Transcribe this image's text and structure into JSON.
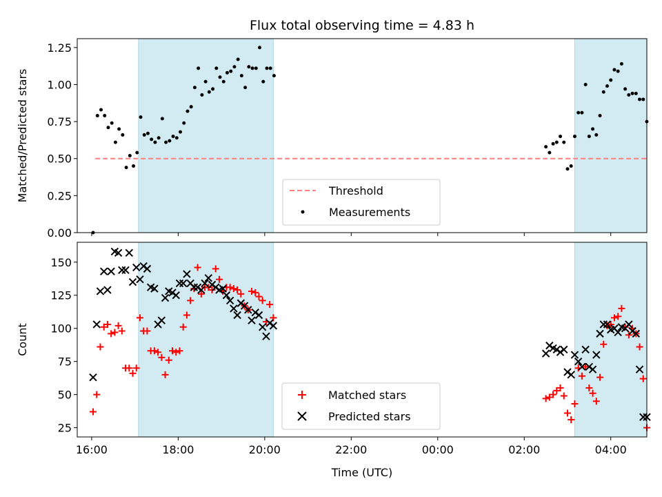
{
  "chart_data": {
    "title": "Flux total observing time = 4.83 h",
    "xlabel": "Time (UTC)",
    "x_tick_labels": [
      "16:00",
      "18:00",
      "20:00",
      "22:00",
      "00:00",
      "02:00",
      "04:00"
    ],
    "x_tick_times": [
      "16:00",
      "18:00",
      "20:00",
      "22:00",
      "00:00",
      "02:00",
      "04:00"
    ],
    "x_range": [
      "15:40",
      "04:50"
    ],
    "shaded_intervals": [
      [
        "17:05",
        "20:12"
      ],
      [
        "03:10",
        "04:50"
      ]
    ],
    "shade_color": "#add8e6",
    "panels": [
      {
        "type": "scatter",
        "ylabel": "Matched/Predicted stars",
        "ylim": [
          0,
          1.31
        ],
        "yticks": [
          0.0,
          0.25,
          0.5,
          0.75,
          1.0,
          1.25
        ],
        "ytick_labels": [
          "0.00",
          "0.25",
          "0.50",
          "0.75",
          "1.00",
          "1.25"
        ],
        "legend_position": "lower center",
        "threshold": {
          "name": "Threshold",
          "value": 0.5,
          "x_start": "16:05",
          "x_end": "04:50",
          "color": "#ff7f7f"
        },
        "series": [
          {
            "name": "Measurements",
            "color": "#000000",
            "marker": "dot",
            "x": [
              "16:02",
              "16:08",
              "16:13",
              "16:18",
              "16:23",
              "16:28",
              "16:33",
              "16:38",
              "16:43",
              "16:48",
              "16:53",
              "16:58",
              "17:03",
              "17:08",
              "17:13",
              "17:18",
              "17:23",
              "17:28",
              "17:33",
              "17:38",
              "17:43",
              "17:48",
              "17:53",
              "17:58",
              "18:03",
              "18:08",
              "18:13",
              "18:18",
              "18:23",
              "18:28",
              "18:33",
              "18:38",
              "18:43",
              "18:48",
              "18:53",
              "18:58",
              "19:03",
              "19:08",
              "19:13",
              "19:18",
              "19:23",
              "19:28",
              "19:33",
              "19:38",
              "19:43",
              "19:48",
              "19:53",
              "19:58",
              "20:03",
              "20:08",
              "20:13",
              "02:30",
              "02:35",
              "02:40",
              "02:45",
              "02:50",
              "02:55",
              "03:00",
              "03:05",
              "03:10",
              "03:15",
              "03:20",
              "03:25",
              "03:30",
              "03:35",
              "03:40",
              "03:45",
              "03:50",
              "03:55",
              "04:00",
              "04:05",
              "04:10",
              "04:15",
              "04:20",
              "04:25",
              "04:30",
              "04:35",
              "04:40",
              "04:45",
              "04:50"
            ],
            "y": [
              0.0,
              0.79,
              0.83,
              0.79,
              0.71,
              0.74,
              0.61,
              0.7,
              0.66,
              0.44,
              0.52,
              0.45,
              0.54,
              0.78,
              0.66,
              0.67,
              0.63,
              0.61,
              0.64,
              0.77,
              0.61,
              0.62,
              0.65,
              0.64,
              0.68,
              0.74,
              0.82,
              0.85,
              0.98,
              1.11,
              0.93,
              1.02,
              0.95,
              0.97,
              1.11,
              1.05,
              1.02,
              1.08,
              1.09,
              1.12,
              1.17,
              1.06,
              0.98,
              1.12,
              1.11,
              1.11,
              1.25,
              1.02,
              1.11,
              1.11,
              1.06,
              0.58,
              0.54,
              0.6,
              0.61,
              0.65,
              0.61,
              0.43,
              0.45,
              0.65,
              0.81,
              0.81,
              1.0,
              0.65,
              0.7,
              0.66,
              0.79,
              0.95,
              0.99,
              1.03,
              1.1,
              1.09,
              1.14,
              0.97,
              0.93,
              0.94,
              0.94,
              0.9,
              0.9,
              0.75
            ]
          }
        ]
      },
      {
        "type": "scatter",
        "ylabel": "Count",
        "ylim": [
          18,
          165
        ],
        "yticks": [
          25,
          50,
          75,
          100,
          125,
          150
        ],
        "ytick_labels": [
          "25",
          "50",
          "75",
          "100",
          "125",
          "150"
        ],
        "legend_position": "lower center",
        "series": [
          {
            "name": "Matched stars",
            "color": "#ff0000",
            "marker": "plus",
            "x": [
              "16:02",
              "16:07",
              "16:12",
              "16:17",
              "16:22",
              "16:27",
              "16:32",
              "16:37",
              "16:42",
              "16:47",
              "16:52",
              "16:57",
              "17:02",
              "17:07",
              "17:12",
              "17:17",
              "17:22",
              "17:27",
              "17:32",
              "17:37",
              "17:42",
              "17:47",
              "17:52",
              "17:57",
              "18:02",
              "18:07",
              "18:12",
              "18:17",
              "18:22",
              "18:27",
              "18:32",
              "18:37",
              "18:42",
              "18:47",
              "18:52",
              "18:57",
              "19:02",
              "19:07",
              "19:12",
              "19:17",
              "19:22",
              "19:27",
              "19:32",
              "19:37",
              "19:42",
              "19:47",
              "19:52",
              "19:57",
              "20:02",
              "20:07",
              "20:12",
              "02:30",
              "02:35",
              "02:40",
              "02:45",
              "02:50",
              "02:55",
              "03:00",
              "03:05",
              "03:10",
              "03:15",
              "03:20",
              "03:25",
              "03:30",
              "03:35",
              "03:40",
              "03:45",
              "03:50",
              "03:55",
              "04:00",
              "04:05",
              "04:10",
              "04:15",
              "04:20",
              "04:25",
              "04:30",
              "04:35",
              "04:40",
              "04:45",
              "04:50"
            ],
            "y": [
              37,
              50,
              86,
              101,
              103,
              96,
              97,
              102,
              98,
              70,
              70,
              66,
              70,
              108,
              98,
              98,
              83,
              83,
              82,
              78,
              65,
              76,
              83,
              82,
              83,
              101,
              110,
              121,
              130,
              146,
              126,
              131,
              131,
              129,
              145,
              137,
              128,
              131,
              131,
              130,
              129,
              126,
              117,
              114,
              128,
              127,
              124,
              121,
              105,
              118,
              108,
              47,
              48,
              50,
              53,
              55,
              49,
              36,
              31,
              43,
              70,
              64,
              71,
              55,
              51,
              45,
              63,
              88,
              102,
              103,
              108,
              109,
              115,
              101,
              95,
              100,
              96,
              86,
              62,
              25
            ]
          },
          {
            "name": "Predicted stars",
            "color": "#000000",
            "marker": "x",
            "x": [
              "16:02",
              "16:07",
              "16:12",
              "16:17",
              "16:22",
              "16:27",
              "16:32",
              "16:37",
              "16:42",
              "16:47",
              "16:52",
              "16:57",
              "17:02",
              "17:07",
              "17:12",
              "17:17",
              "17:22",
              "17:27",
              "17:32",
              "17:37",
              "17:42",
              "17:47",
              "17:52",
              "17:57",
              "18:02",
              "18:07",
              "18:12",
              "18:17",
              "18:22",
              "18:27",
              "18:32",
              "18:37",
              "18:42",
              "18:47",
              "18:52",
              "18:57",
              "19:02",
              "19:07",
              "19:12",
              "19:17",
              "19:22",
              "19:27",
              "19:32",
              "19:37",
              "19:42",
              "19:47",
              "19:52",
              "19:57",
              "20:02",
              "20:07",
              "20:12",
              "02:30",
              "02:35",
              "02:40",
              "02:45",
              "02:50",
              "02:55",
              "03:00",
              "03:05",
              "03:10",
              "03:15",
              "03:20",
              "03:25",
              "03:30",
              "03:35",
              "03:40",
              "03:45",
              "03:50",
              "03:55",
              "04:00",
              "04:05",
              "04:10",
              "04:15",
              "04:20",
              "04:25",
              "04:30",
              "04:35",
              "04:40",
              "04:45",
              "04:50"
            ],
            "y": [
              63,
              103,
              128,
              143,
              129,
              143,
              158,
              157,
              144,
              144,
              157,
              135,
              146,
              137,
              147,
              145,
              131,
              130,
              103,
              106,
              123,
              128,
              127,
              125,
              134,
              134,
              141,
              134,
              131,
              131,
              129,
              134,
              138,
              133,
              131,
              129,
              130,
              125,
              121,
              115,
              110,
              119,
              117,
              114,
              106,
              112,
              110,
              101,
              94,
              104,
              102,
              81,
              87,
              85,
              84,
              82,
              84,
              67,
              65,
              80,
              75,
              71,
              84,
              71,
              69,
              80,
              96,
              103,
              103,
              99,
              100,
              97,
              101,
              100,
              103,
              98,
              96,
              69,
              33,
              33
            ]
          }
        ]
      }
    ]
  }
}
